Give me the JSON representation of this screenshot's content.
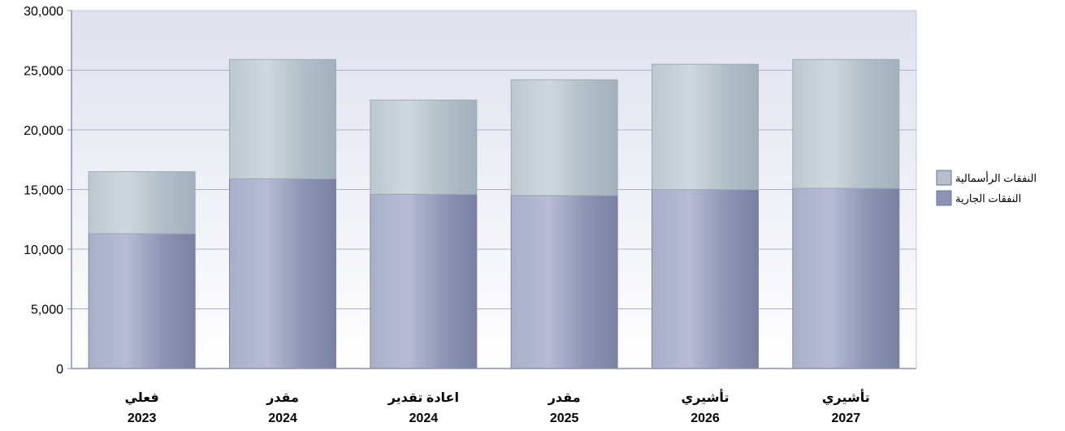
{
  "chart_data": {
    "type": "bar",
    "stacked": true,
    "categories": [
      {
        "label": "فعلي",
        "year": "2023"
      },
      {
        "label": "مقدر",
        "year": "2024"
      },
      {
        "label": "اعادة تقدير",
        "year": "2024"
      },
      {
        "label": "مقدر",
        "year": "2025"
      },
      {
        "label": "تأشيري",
        "year": "2026"
      },
      {
        "label": "تأشيري",
        "year": "2027"
      }
    ],
    "series": [
      {
        "name": "النفقات الجارية",
        "color": "#8c93b3",
        "values": [
          11300,
          15900,
          14600,
          14500,
          15000,
          15100
        ]
      },
      {
        "name": "النفقات الرأسمالية",
        "color": "#b4c1ca",
        "values": [
          5200,
          10000,
          7900,
          9700,
          10500,
          10800
        ]
      }
    ],
    "yticks": [
      "0",
      "5,000",
      "10,000",
      "15,000",
      "20,000",
      "25,000",
      "30,000"
    ],
    "ylim": [
      0,
      30000
    ],
    "grid": true,
    "legend_placement": "right",
    "colors": {
      "plot_bg_top": "#dfe2ee",
      "plot_bg_bottom": "#ffffff",
      "grid": "#aab0cc",
      "axis": "#8a90b0"
    }
  }
}
